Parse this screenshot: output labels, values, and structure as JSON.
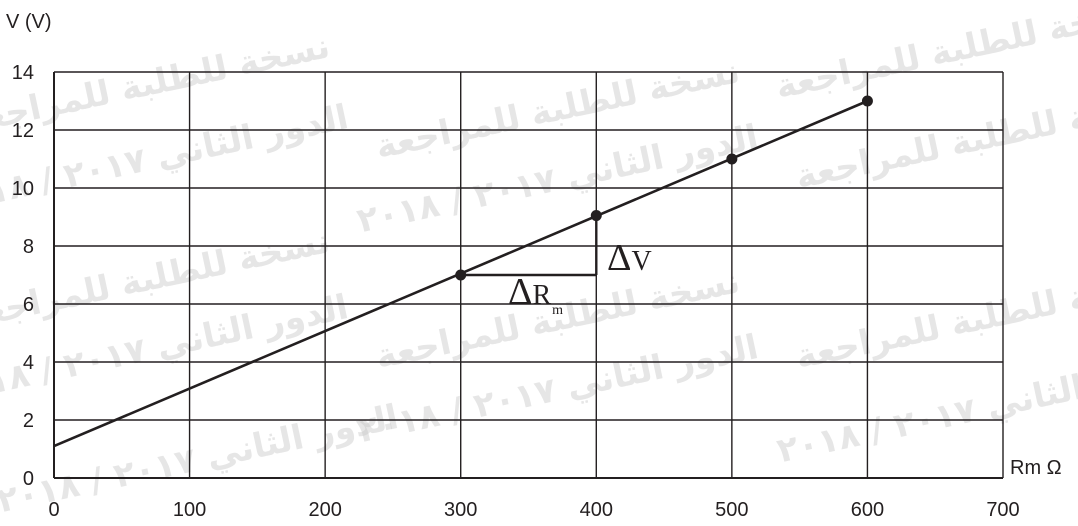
{
  "chart_data": {
    "type": "line",
    "xlabel": "Rm Ω",
    "ylabel": "V (V)",
    "xlim": [
      0,
      700
    ],
    "ylim": [
      0,
      14
    ],
    "x_ticks": [
      "0",
      "100",
      "200",
      "300",
      "400",
      "500",
      "600",
      "700"
    ],
    "y_ticks": [
      "0",
      "2",
      "4",
      "6",
      "8",
      "10",
      "12",
      "14"
    ],
    "grid": true,
    "series": [
      {
        "points": [
          {
            "x": 300,
            "y": 7
          },
          {
            "x": 400,
            "y": 9.05
          },
          {
            "x": 500,
            "y": 11
          },
          {
            "x": 600,
            "y": 13
          }
        ],
        "fit_line": {
          "x_start": 0,
          "y_start": 1.1,
          "x_end": 600,
          "y_end": 13
        }
      }
    ],
    "annotations": {
      "delta_v": {
        "symbol": "Δ",
        "text": "V"
      },
      "delta_r": {
        "symbol": "Δ",
        "text": "R",
        "subscript": "m"
      },
      "triangle": {
        "x1": 300,
        "x2": 400,
        "y1": 7,
        "y2": 9.05
      }
    },
    "watermark": {
      "line1": "نسخة للطلبة للمراجعة",
      "line2": "الدور الثاني ٢٠١٧ / ٢٠١٨"
    }
  }
}
